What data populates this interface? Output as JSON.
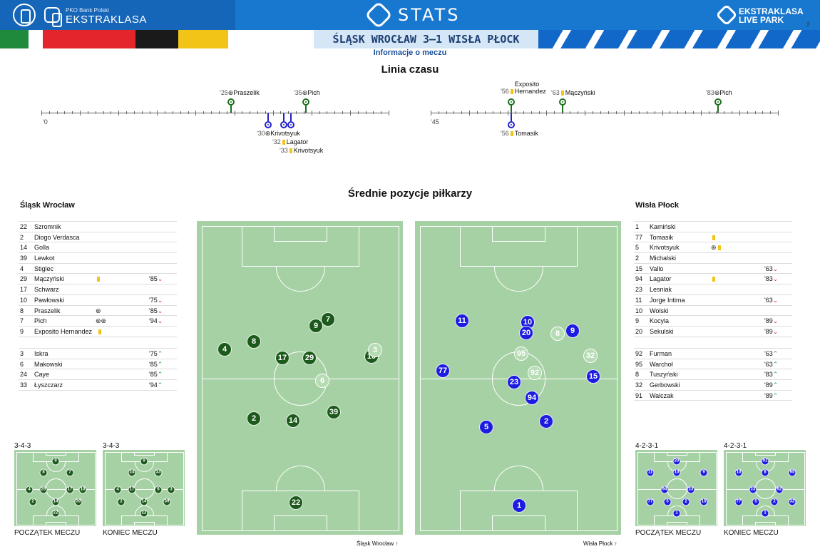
{
  "header": {
    "brand_small": "PKO Bank Polski",
    "brand": "EKSTRAKLASA",
    "stats_title": "STATS",
    "live_line1": "EKSTRAKLASA",
    "live_line2": "LIVE PARK",
    "page_number": "2"
  },
  "match": {
    "title": "ŚLĄSK WROCŁAW 3–1 WISŁA PŁOCK",
    "subtitle": "Informacje o meczu"
  },
  "timeline": {
    "title": "Linia czasu",
    "half1_start": "'0",
    "half2_start": "'45",
    "events": [
      {
        "minute": "'25",
        "name": "Praszelik",
        "team": "home",
        "type": "goal"
      },
      {
        "minute": "'35",
        "name": "Pich",
        "team": "home",
        "type": "goal"
      },
      {
        "minute": "'30",
        "name": "Krivotsyuk",
        "team": "away",
        "type": "own-goal"
      },
      {
        "minute": "'32",
        "name": "Lagator",
        "team": "away",
        "type": "yellow"
      },
      {
        "minute": "'33",
        "name": "Krivotsyuk",
        "team": "away",
        "type": "yellow"
      },
      {
        "minute": "'56",
        "name": "Exposito Hernandez",
        "team": "home",
        "type": "yellow"
      },
      {
        "minute": "'63",
        "name": "Mączyński",
        "team": "home",
        "type": "yellow"
      },
      {
        "minute": "'83",
        "name": "Pich",
        "team": "home",
        "type": "goal"
      },
      {
        "minute": "'56",
        "name": "Tomasik",
        "team": "away",
        "type": "yellow"
      }
    ]
  },
  "positions": {
    "title": "Średnie pozycje piłkarzy",
    "home_caption": "Śląsk Wrocław",
    "away_caption": "Wisła Płock"
  },
  "home": {
    "name": "Śląsk Wrocław",
    "starters": [
      {
        "num": "22",
        "name": "Szromnik",
        "icons": "",
        "sub": ""
      },
      {
        "num": "2",
        "name": "Diogo Verdasca",
        "icons": "",
        "sub": ""
      },
      {
        "num": "14",
        "name": "Golla",
        "icons": "",
        "sub": ""
      },
      {
        "num": "39",
        "name": "Lewkot",
        "icons": "",
        "sub": ""
      },
      {
        "num": "4",
        "name": "Stiglec",
        "icons": "",
        "sub": ""
      },
      {
        "num": "29",
        "name": "Mączyński",
        "icons": "yellow",
        "sub": "'85"
      },
      {
        "num": "17",
        "name": "Schwarz",
        "icons": "",
        "sub": ""
      },
      {
        "num": "10",
        "name": "Pawłowski",
        "icons": "",
        "sub": "'75"
      },
      {
        "num": "8",
        "name": "Praszelik",
        "icons": "⊛",
        "sub": "'85"
      },
      {
        "num": "7",
        "name": "Pich",
        "icons": "⊛⊛",
        "sub": "'94"
      },
      {
        "num": "9",
        "name": "Exposito Hernandez",
        "icons": "yellow",
        "sub": ""
      }
    ],
    "subs": [
      {
        "num": "3",
        "name": "Iskra",
        "sub": "'75"
      },
      {
        "num": "6",
        "name": "Makowski",
        "sub": "'85"
      },
      {
        "num": "24",
        "name": "Caye",
        "sub": "'85"
      },
      {
        "num": "33",
        "name": "Łyszczarz",
        "sub": "'94"
      }
    ],
    "formation_start": "3-4-3",
    "formation_end": "3-4-3",
    "label_start": "POCZĄTEK MECZU",
    "label_end": "KONIEC MECZU"
  },
  "away": {
    "name": "Wisła Płock",
    "starters": [
      {
        "num": "1",
        "name": "Kamiński",
        "icons": "",
        "sub": ""
      },
      {
        "num": "77",
        "name": "Tomasik",
        "icons": "yellow",
        "sub": ""
      },
      {
        "num": "5",
        "name": "Krivotsyuk",
        "icons": "⊛yellow",
        "sub": ""
      },
      {
        "num": "2",
        "name": "Michalski",
        "icons": "",
        "sub": ""
      },
      {
        "num": "15",
        "name": "Vallo",
        "icons": "",
        "sub": "'63"
      },
      {
        "num": "94",
        "name": "Lagator",
        "icons": "yellow",
        "sub": "'83"
      },
      {
        "num": "23",
        "name": "Lesniak",
        "icons": "",
        "sub": ""
      },
      {
        "num": "11",
        "name": "Jorge Intima",
        "icons": "",
        "sub": "'63"
      },
      {
        "num": "10",
        "name": "Wolski",
        "icons": "",
        "sub": ""
      },
      {
        "num": "9",
        "name": "Kocyla",
        "icons": "",
        "sub": "'89"
      },
      {
        "num": "20",
        "name": "Sekulski",
        "icons": "",
        "sub": "'89"
      }
    ],
    "subs": [
      {
        "num": "92",
        "name": "Furman",
        "sub": "'63"
      },
      {
        "num": "95",
        "name": "Warchoł",
        "sub": "'63"
      },
      {
        "num": "8",
        "name": "Tuszyński",
        "sub": "'83"
      },
      {
        "num": "32",
        "name": "Gerbowski",
        "sub": "'89"
      },
      {
        "num": "91",
        "name": "Walczak",
        "sub": "'89"
      }
    ],
    "formation_start": "4-2-3-1",
    "formation_end": "4-2-3-1",
    "label_start": "POCZĄTEK MECZU",
    "label_end": "KONIEC MECZU"
  },
  "colors": {
    "home": "#1c5a1c",
    "away": "#1c1ce0",
    "pitch": "#a6d1a4",
    "accent": "#1877cf"
  }
}
